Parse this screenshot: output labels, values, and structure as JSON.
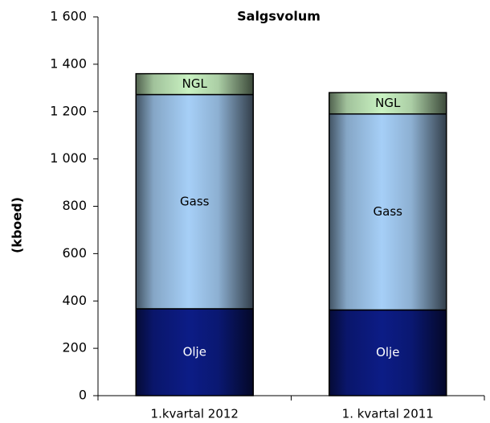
{
  "chart_data": {
    "type": "stacked_bar",
    "title": "Salgsvolum",
    "y_label": "(kboed)",
    "categories": [
      "1.kvartal 2012",
      "1. kvartal 2011"
    ],
    "series": [
      {
        "name": "Olje",
        "color": "#0c1c86",
        "values": [
          367,
          362
        ]
      },
      {
        "name": "Gass",
        "color": "#a6cff7",
        "values": [
          905,
          828
        ]
      },
      {
        "name": "NGL",
        "color": "#c9f2c2",
        "values": [
          88,
          90
        ]
      }
    ],
    "ylim": [
      0,
      1600
    ],
    "yticks": [
      0,
      200,
      400,
      600,
      800,
      {
        "value": 1000,
        "label": "1 000"
      },
      {
        "value": 1200,
        "label": "1 200"
      },
      {
        "value": 1400,
        "label": "1 400"
      },
      {
        "value": 1600,
        "label": "1 600"
      }
    ]
  }
}
